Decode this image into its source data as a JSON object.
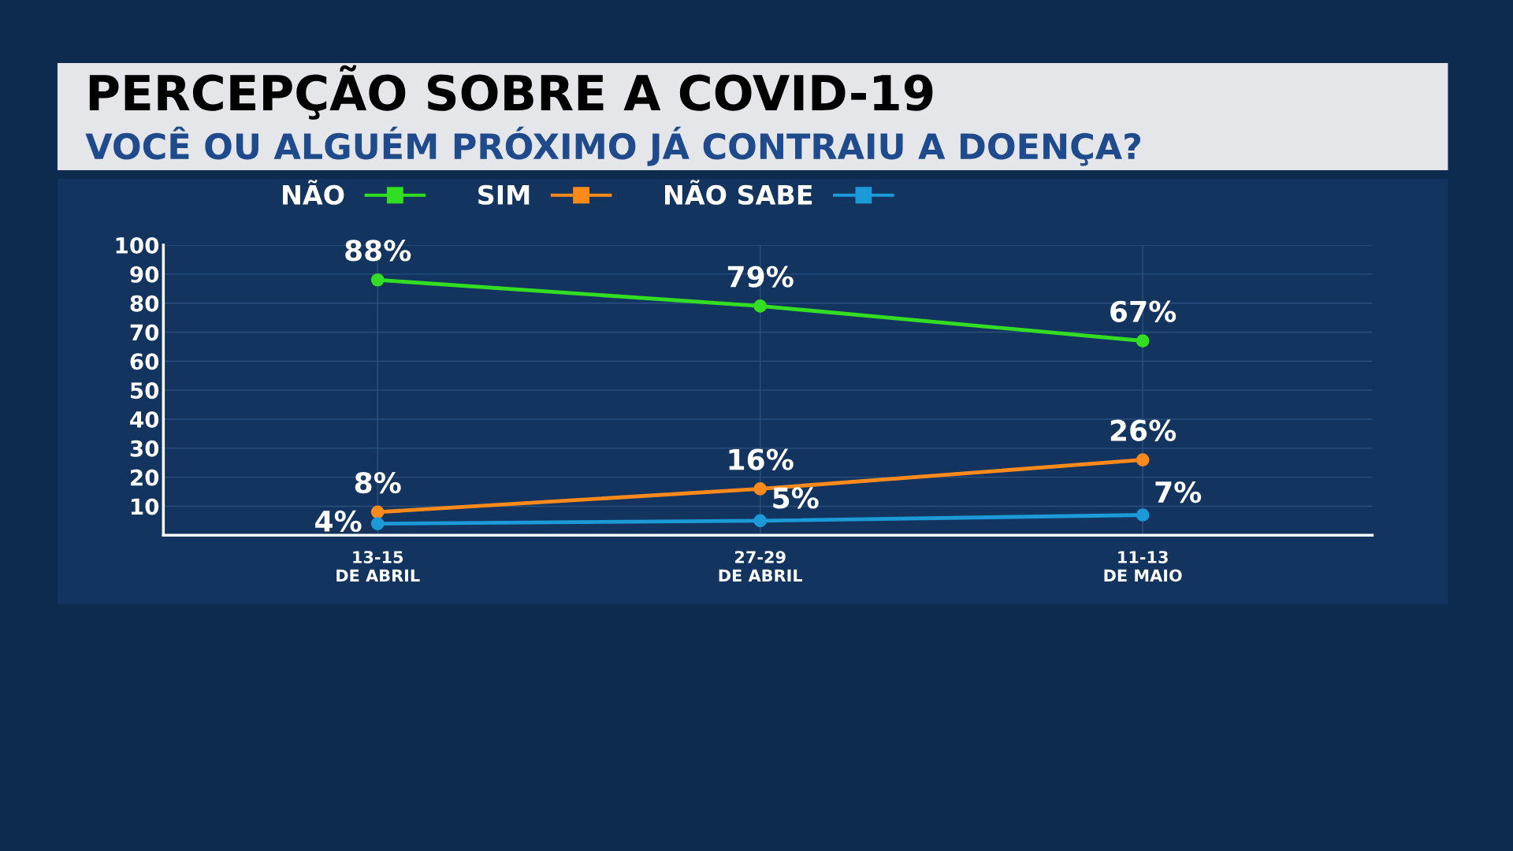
{
  "chart_data": {
    "type": "line",
    "title": "PERCEPÇÃO SOBRE A COVID-19",
    "subtitle": "VOCÊ OU ALGUÉM PRÓXIMO JÁ CONTRAIU A DOENÇA?",
    "categories": [
      "13-15\nDE ABRIL",
      "27-29\nDE ABRIL",
      "11-13\nDE MAIO"
    ],
    "series": [
      {
        "name": "NÃO",
        "color": "#33dd22",
        "values": [
          88,
          79,
          67
        ],
        "value_labels": [
          "88%",
          "79%",
          "67%"
        ]
      },
      {
        "name": "SIM",
        "color": "#ff8a1c",
        "values": [
          8,
          16,
          26
        ],
        "value_labels": [
          "8%",
          "16%",
          "26%"
        ]
      },
      {
        "name": "NÃO SABE",
        "color": "#1c9ad8",
        "values": [
          4,
          5,
          7
        ],
        "value_labels": [
          "4%",
          "5%",
          "7%"
        ]
      }
    ],
    "ylim": [
      0,
      100
    ],
    "yticks": [
      10,
      20,
      30,
      40,
      50,
      60,
      70,
      80,
      90,
      100
    ],
    "grid": true,
    "legend": "top",
    "marker": "circle",
    "line_style": "solid"
  }
}
